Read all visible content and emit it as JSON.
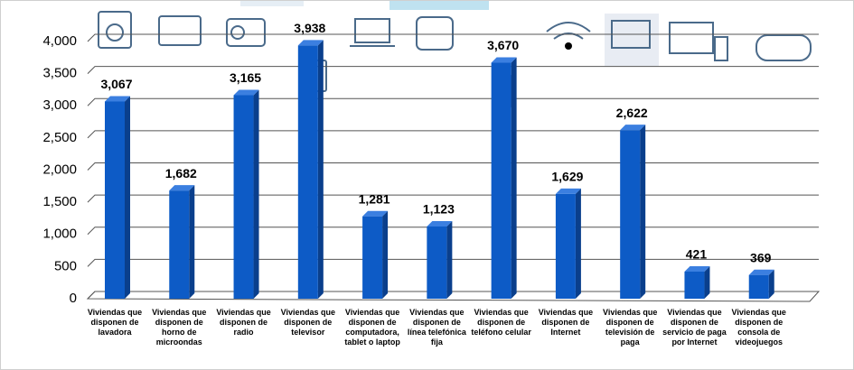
{
  "chart_data": {
    "type": "bar",
    "categories": [
      "Viviendas que disponen de lavadora",
      "Viviendas que disponen de horno de microondas",
      "Viviendas que disponen de radio",
      "Viviendas que disponen de televisor",
      "Viviendas que disponen de computadora, tablet o laptop",
      "Viviendas que disponen de línea telefónica fija",
      "Viviendas que disponen de teléfono celular",
      "Viviendas que disponen de Internet",
      "Viviendas que disponen de televisión de paga",
      "Viviendas que disponen de servicio de paga por Internet",
      "Viviendas que disponen de consola de videojuegos"
    ],
    "values": [
      3067,
      1682,
      3165,
      3938,
      1281,
      1123,
      3670,
      1629,
      2622,
      421,
      369
    ],
    "value_labels": [
      "3,067",
      "1,682",
      "3,165",
      "3,938",
      "1,281",
      "1,123",
      "3,670",
      "1,629",
      "2,622",
      "421",
      "369"
    ],
    "color": "#0d5bc6",
    "ylim": [
      0,
      4000
    ],
    "yticks": [
      0,
      500,
      {
        "value": 1000,
        "label": "1,000"
      },
      {
        "value": 1500,
        "label": "1,500"
      },
      {
        "value": 2000,
        "label": "2,000"
      },
      {
        "value": 2500,
        "label": "2,500"
      },
      {
        "value": 3000,
        "label": "3,000"
      },
      {
        "value": 3500,
        "label": "3,500"
      },
      {
        "value": 4000,
        "label": "4,000"
      }
    ],
    "grid": true
  }
}
